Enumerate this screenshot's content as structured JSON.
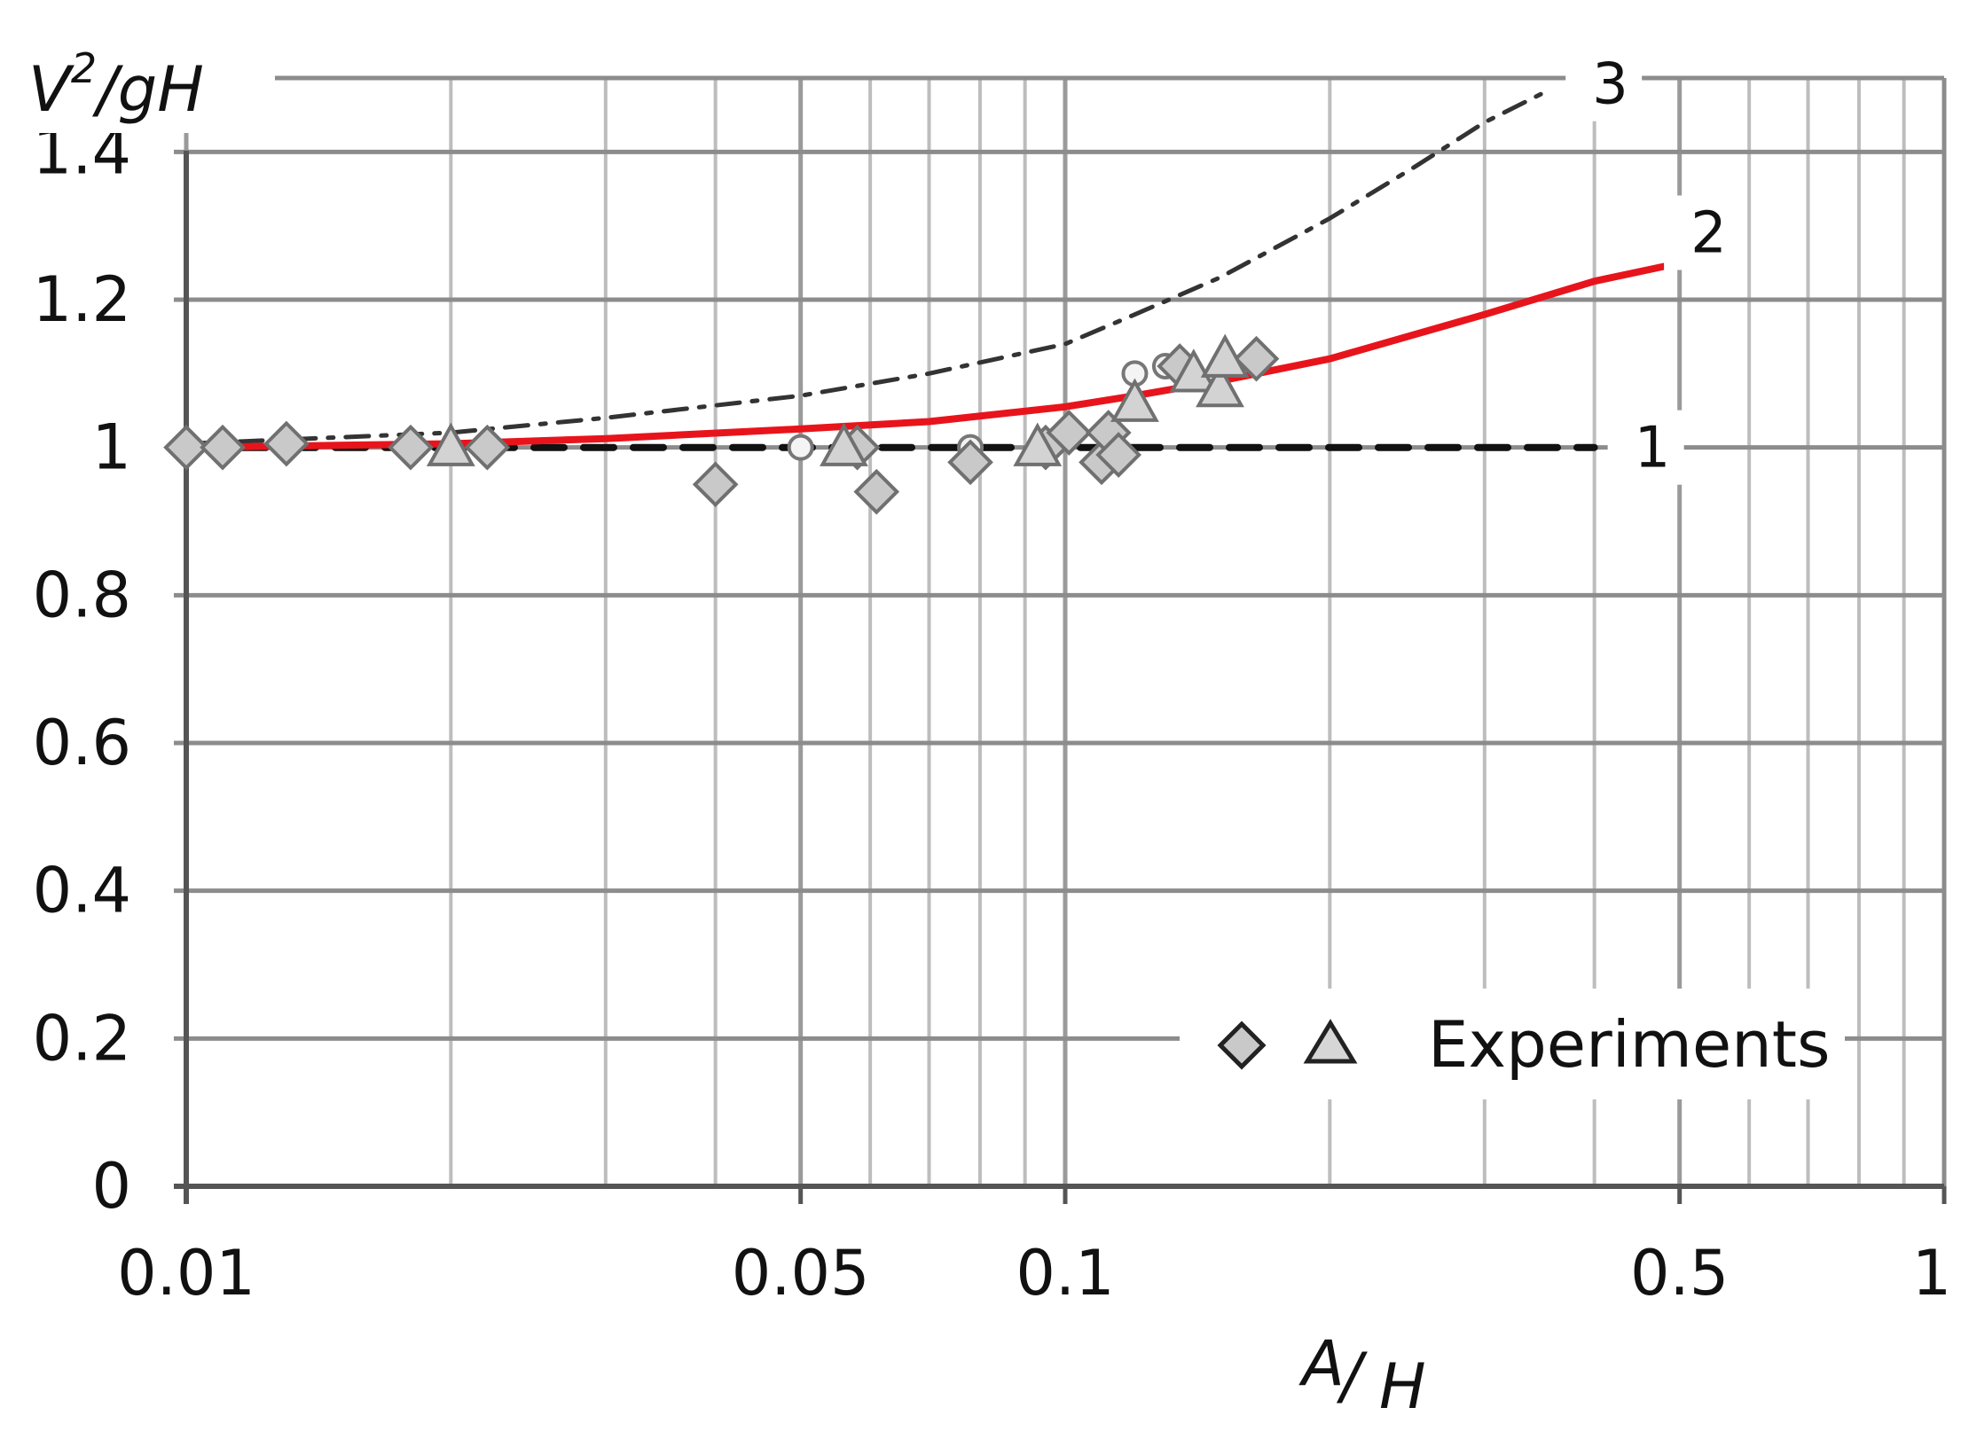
{
  "chart_data": {
    "type": "line",
    "x_scale": "log",
    "xlim": [
      0.01,
      1
    ],
    "ylim": [
      0,
      1.5
    ],
    "grid": true,
    "ylabel": {
      "main": "V",
      "sup": "2",
      "tail": "/gH"
    },
    "xlabel": {
      "num": "A",
      "den": "H"
    },
    "x_ticks": [
      {
        "value": 0.01,
        "label": "0.01"
      },
      {
        "value": 0.05,
        "label": "0.05"
      },
      {
        "value": 0.1,
        "label": "0.1"
      },
      {
        "value": 0.5,
        "label": "0.5"
      },
      {
        "value": 1,
        "label": "1"
      }
    ],
    "y_ticks": [
      {
        "value": 0,
        "label": "0"
      },
      {
        "value": 0.2,
        "label": "0.2"
      },
      {
        "value": 0.4,
        "label": "0.4"
      },
      {
        "value": 0.6,
        "label": "0.6"
      },
      {
        "value": 0.8,
        "label": "0.8"
      },
      {
        "value": 1.0,
        "label": "1"
      },
      {
        "value": 1.2,
        "label": "1.2"
      },
      {
        "value": 1.4,
        "label": "1.4"
      }
    ],
    "series": [
      {
        "name": "1",
        "style": "dashed",
        "color": "#111111",
        "x": [
          0.01,
          0.02,
          0.05,
          0.1,
          0.2,
          0.3,
          0.4
        ],
        "y": [
          1.0,
          1.0,
          1.0,
          1.0,
          1.0,
          1.0,
          1.0
        ]
      },
      {
        "name": "2",
        "style": "solid",
        "color": "#e8141c",
        "x": [
          0.01,
          0.02,
          0.03,
          0.05,
          0.07,
          0.1,
          0.12,
          0.15,
          0.2,
          0.3,
          0.4,
          0.48
        ],
        "y": [
          1.0,
          1.005,
          1.012,
          1.025,
          1.035,
          1.055,
          1.07,
          1.09,
          1.12,
          1.18,
          1.225,
          1.245
        ]
      },
      {
        "name": "3",
        "style": "dash-dot",
        "color": "#333333",
        "x": [
          0.01,
          0.02,
          0.03,
          0.05,
          0.07,
          0.1,
          0.12,
          0.15,
          0.2,
          0.25,
          0.3,
          0.35
        ],
        "y": [
          1.005,
          1.02,
          1.04,
          1.07,
          1.1,
          1.14,
          1.18,
          1.23,
          1.31,
          1.38,
          1.44,
          1.48
        ]
      }
    ],
    "experiments": {
      "diamonds": [
        {
          "x": 0.01,
          "y": 1.0
        },
        {
          "x": 0.011,
          "y": 1.0
        },
        {
          "x": 0.013,
          "y": 1.005
        },
        {
          "x": 0.018,
          "y": 1.0
        },
        {
          "x": 0.022,
          "y": 1.0
        },
        {
          "x": 0.04,
          "y": 0.95
        },
        {
          "x": 0.058,
          "y": 1.0
        },
        {
          "x": 0.061,
          "y": 0.94
        },
        {
          "x": 0.078,
          "y": 0.98
        },
        {
          "x": 0.095,
          "y": 1.0
        },
        {
          "x": 0.101,
          "y": 1.02
        },
        {
          "x": 0.11,
          "y": 0.98
        },
        {
          "x": 0.112,
          "y": 1.02
        },
        {
          "x": 0.115,
          "y": 0.99
        },
        {
          "x": 0.135,
          "y": 1.11
        },
        {
          "x": 0.165,
          "y": 1.12
        }
      ],
      "triangles": [
        {
          "x": 0.02,
          "y": 1.0
        },
        {
          "x": 0.056,
          "y": 1.0
        },
        {
          "x": 0.093,
          "y": 1.0
        },
        {
          "x": 0.12,
          "y": 1.06
        },
        {
          "x": 0.14,
          "y": 1.1
        },
        {
          "x": 0.15,
          "y": 1.08
        },
        {
          "x": 0.152,
          "y": 1.12
        }
      ],
      "circles": [
        {
          "x": 0.05,
          "y": 1.0
        },
        {
          "x": 0.078,
          "y": 1.0
        },
        {
          "x": 0.1,
          "y": 1.02
        },
        {
          "x": 0.12,
          "y": 1.1
        },
        {
          "x": 0.13,
          "y": 1.11
        }
      ]
    },
    "legend": {
      "label": "Experiments",
      "position": "bottom-right"
    }
  }
}
